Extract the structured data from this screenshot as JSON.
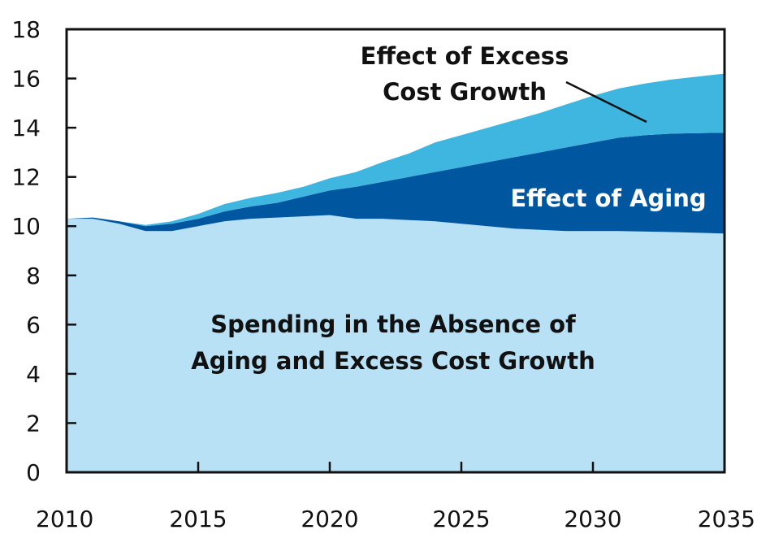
{
  "chart_data": {
    "type": "area",
    "stacked": true,
    "title": "",
    "xlabel": "",
    "ylabel": "",
    "xlim": [
      2010,
      2035
    ],
    "ylim": [
      0,
      18
    ],
    "x_ticks": [
      "2010",
      "2015",
      "2020",
      "2025",
      "2030",
      "2035"
    ],
    "y_ticks": [
      "0",
      "2",
      "4",
      "6",
      "8",
      "10",
      "12",
      "14",
      "16",
      "18"
    ],
    "grid": false,
    "x": [
      2010,
      2011,
      2012,
      2013,
      2014,
      2015,
      2016,
      2017,
      2018,
      2019,
      2020,
      2021,
      2022,
      2023,
      2024,
      2025,
      2026,
      2027,
      2028,
      2029,
      2030,
      2031,
      2032,
      2033,
      2034,
      2035
    ],
    "series": [
      {
        "name": "Spending in the Absence of Aging and Excess Cost Growth",
        "color": "#b9e1f6",
        "values": [
          10.3,
          10.3,
          10.1,
          9.8,
          9.8,
          10.0,
          10.2,
          10.3,
          10.35,
          10.4,
          10.45,
          10.3,
          10.3,
          10.25,
          10.2,
          10.1,
          10.0,
          9.9,
          9.85,
          9.8,
          9.8,
          9.8,
          9.78,
          9.76,
          9.73,
          9.7
        ]
      },
      {
        "name": "Effect of Aging",
        "color": "#0057a0",
        "values": [
          0.0,
          0.05,
          0.1,
          0.2,
          0.3,
          0.3,
          0.4,
          0.5,
          0.6,
          0.8,
          1.0,
          1.3,
          1.5,
          1.75,
          2.0,
          2.3,
          2.6,
          2.9,
          3.15,
          3.4,
          3.6,
          3.8,
          3.92,
          4.0,
          4.05,
          4.1
        ]
      },
      {
        "name": "Effect of Excess Cost Growth",
        "color": "#3fb6e0",
        "values": [
          0.0,
          0.0,
          0.0,
          0.05,
          0.1,
          0.2,
          0.3,
          0.35,
          0.4,
          0.4,
          0.5,
          0.6,
          0.8,
          0.95,
          1.2,
          1.3,
          1.4,
          1.5,
          1.6,
          1.75,
          1.9,
          2.0,
          2.1,
          2.2,
          2.3,
          2.4
        ]
      }
    ],
    "annotations": [
      {
        "key": "excess",
        "lines": [
          "Effect of Excess",
          "Cost Growth"
        ],
        "color": "#111111"
      },
      {
        "key": "aging",
        "lines": [
          "Effect of Aging"
        ],
        "color": "#ffffff"
      },
      {
        "key": "base",
        "lines": [
          "Spending in the Absence of",
          "Aging and Excess Cost Growth"
        ],
        "color": "#111111"
      }
    ]
  }
}
